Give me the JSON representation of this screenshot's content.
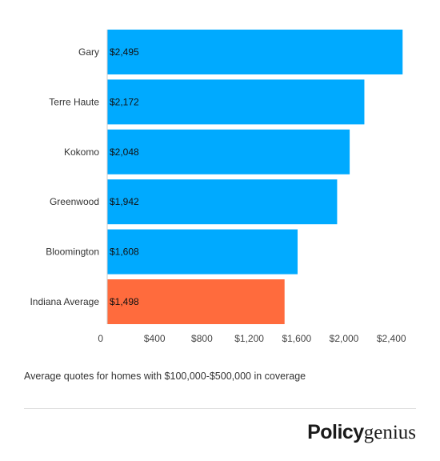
{
  "chart_data": {
    "type": "bar",
    "orientation": "horizontal",
    "categories": [
      "Gary",
      "Terre Haute",
      "Kokomo",
      "Greenwood",
      "Bloomington",
      "Indiana Average"
    ],
    "values": [
      2495,
      2172,
      2048,
      1942,
      1608,
      1498
    ],
    "value_labels": [
      "$2,495",
      "$2,172",
      "$2,048",
      "$1,942",
      "$1,608",
      "$1,498"
    ],
    "x_ticks": [
      0,
      400,
      800,
      1200,
      1600,
      2000,
      2400
    ],
    "x_tick_labels": [
      "0",
      "$400",
      "$800",
      "$1,200",
      "$1,600",
      "$2,000",
      "$2,400"
    ],
    "xlim": [
      0,
      2600
    ],
    "grid": false,
    "colors": {
      "default": "#00aaff",
      "highlight": "#ff6b3d"
    },
    "highlight_index": 5
  },
  "caption": "Average quotes for homes with $100,000-$500,000 in coverage",
  "logo": {
    "part1": "Policy",
    "part2": "genius"
  }
}
